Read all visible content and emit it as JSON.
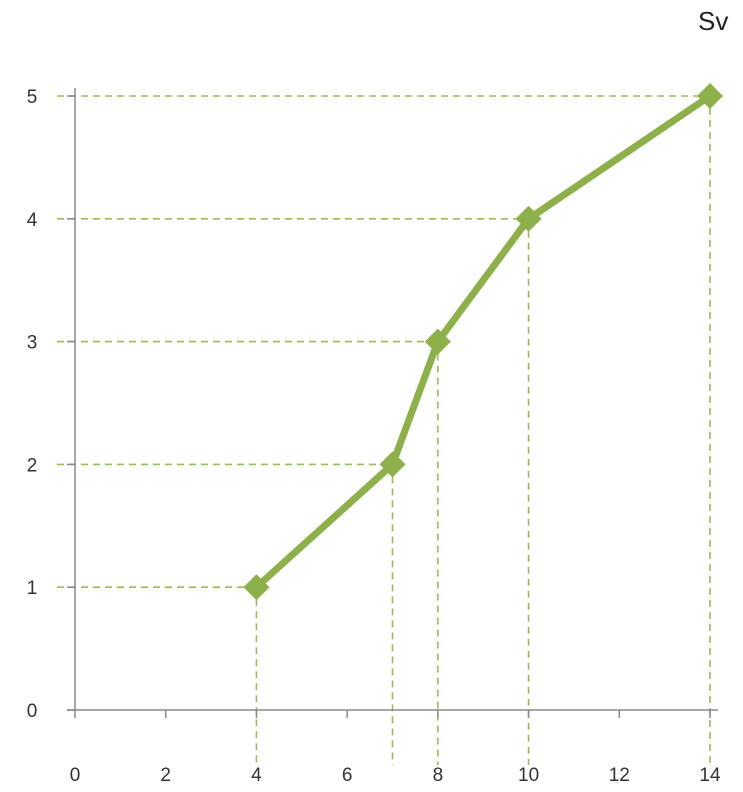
{
  "chart_data": {
    "type": "line",
    "title": "",
    "xlabel": "",
    "ylabel": "",
    "corner_label": "Sv",
    "xlim": [
      0,
      14
    ],
    "ylim": [
      0,
      5
    ],
    "x_ticks": [
      "0",
      "2",
      "4",
      "6",
      "8",
      "10",
      "12",
      "14"
    ],
    "y_ticks": [
      "0",
      "1",
      "2",
      "3",
      "4",
      "5"
    ],
    "series": [
      {
        "x": [
          4,
          7,
          8,
          10,
          14
        ],
        "y": [
          1,
          2,
          3,
          4,
          5
        ]
      }
    ],
    "reference_lines": {
      "style": "dashed",
      "to_axes": true
    },
    "grid": false,
    "colors": {
      "line": "#8db04a",
      "guide": "#9bbb59",
      "axis": "#8a8a8a"
    }
  }
}
